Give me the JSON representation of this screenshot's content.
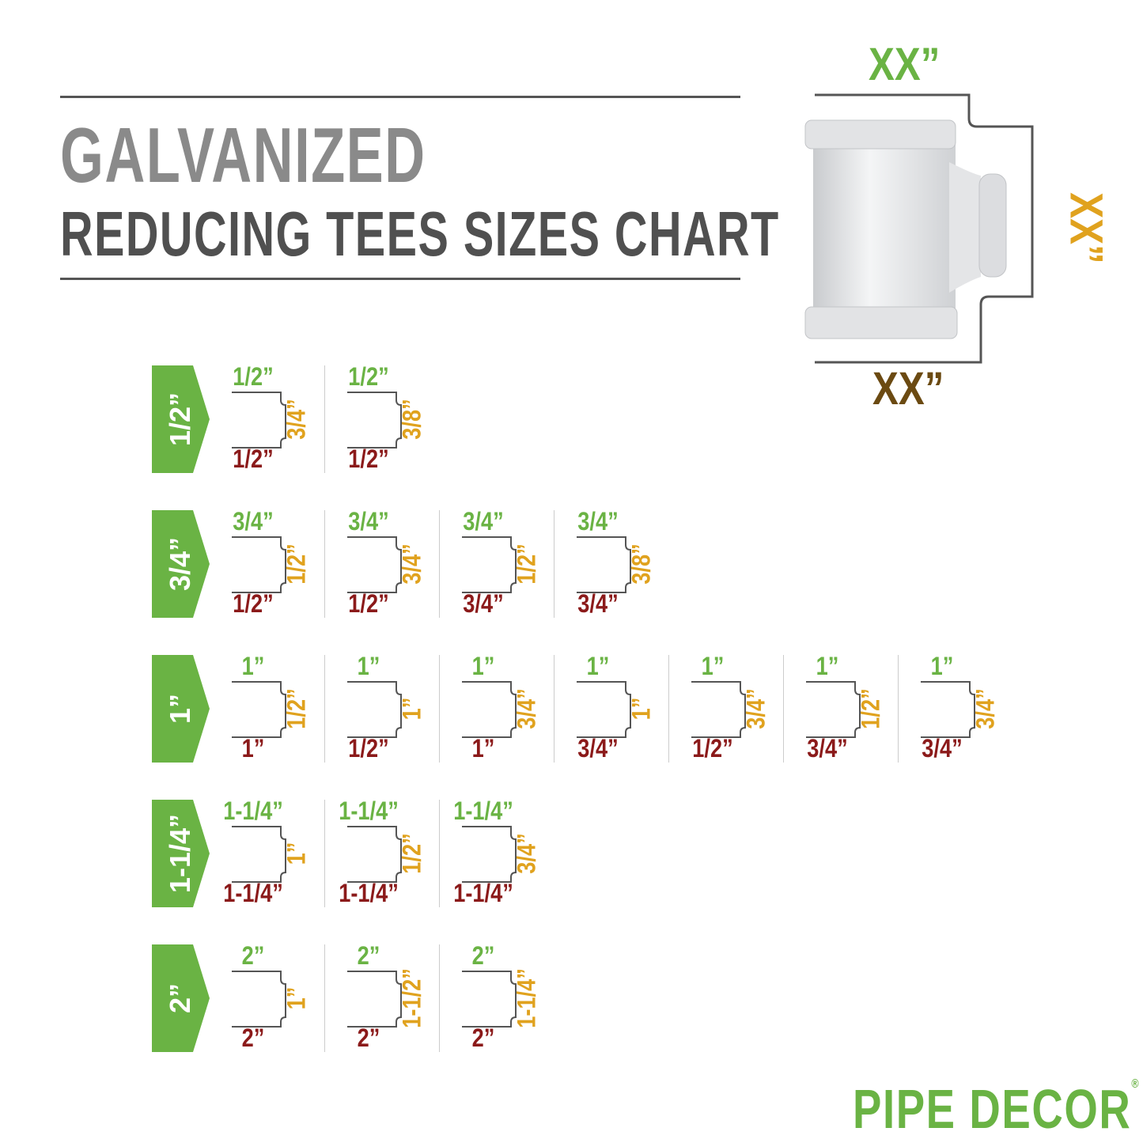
{
  "title": {
    "line1": "GALVANIZED",
    "line2": "REDUCING TEES SIZES CHART"
  },
  "diagram": {
    "top_label": "XX”",
    "side_label": "XX”",
    "bottom_label": "XX”"
  },
  "colors": {
    "run_in": "#6ab344",
    "run_out": "#8b1a1a",
    "branch": "#e0a21e",
    "diagram_bottom": "#6b4a12",
    "title_light": "#8a8a8a",
    "title_dark": "#505050",
    "tag": "#6ab344"
  },
  "rows": [
    {
      "size": "1/2”",
      "items": [
        {
          "top": "1/2”",
          "side": "3/4”",
          "bottom": "1/2”"
        },
        {
          "top": "1/2”",
          "side": "3/8”",
          "bottom": "1/2”"
        }
      ]
    },
    {
      "size": "3/4”",
      "items": [
        {
          "top": "3/4”",
          "side": "1/2”",
          "bottom": "1/2”"
        },
        {
          "top": "3/4”",
          "side": "3/4”",
          "bottom": "1/2”"
        },
        {
          "top": "3/4”",
          "side": "1/2”",
          "bottom": "3/4”"
        },
        {
          "top": "3/4”",
          "side": "3/8”",
          "bottom": "3/4”"
        }
      ]
    },
    {
      "size": "1”",
      "items": [
        {
          "top": "1”",
          "side": "1/2”",
          "bottom": "1”"
        },
        {
          "top": "1”",
          "side": "1”",
          "bottom": "1/2”"
        },
        {
          "top": "1”",
          "side": "3/4”",
          "bottom": "1”"
        },
        {
          "top": "1”",
          "side": "1”",
          "bottom": "3/4”"
        },
        {
          "top": "1”",
          "side": "3/4”",
          "bottom": "1/2”"
        },
        {
          "top": "1”",
          "side": "1/2”",
          "bottom": "3/4”"
        },
        {
          "top": "1”",
          "side": "3/4”",
          "bottom": "3/4”"
        }
      ]
    },
    {
      "size": "1-1/4”",
      "items": [
        {
          "top": "1-1/4”",
          "side": "1”",
          "bottom": "1-1/4”"
        },
        {
          "top": "1-1/4”",
          "side": "1/2”",
          "bottom": "1-1/4”"
        },
        {
          "top": "1-1/4”",
          "side": "3/4”",
          "bottom": "1-1/4”"
        }
      ]
    },
    {
      "size": "2”",
      "items": [
        {
          "top": "2”",
          "side": "1”",
          "bottom": "2”"
        },
        {
          "top": "2”",
          "side": "1-1/2”",
          "bottom": "2”"
        },
        {
          "top": "2”",
          "side": "1-1/4”",
          "bottom": "2”"
        }
      ]
    }
  ],
  "logo": {
    "text": "PIPE DECOR",
    "mark": "®"
  }
}
